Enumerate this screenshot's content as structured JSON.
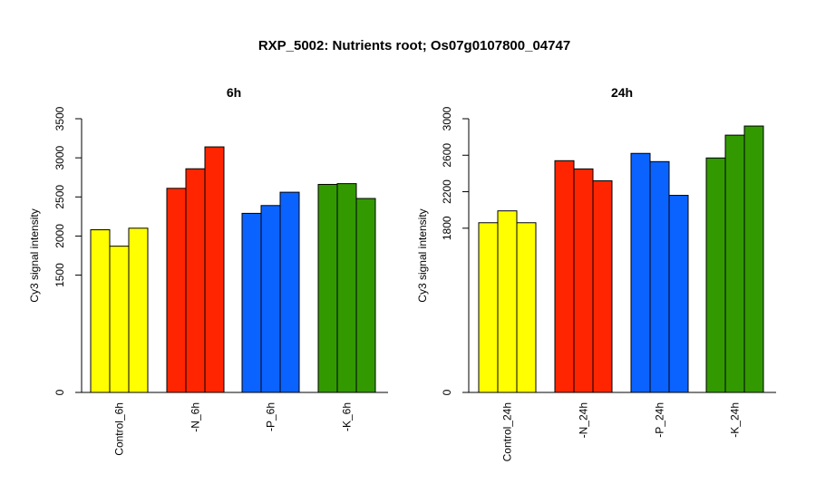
{
  "title": "RXP_5002: Nutrients root; Os07g0107800_04747",
  "colors": {
    "control": "#ffff00",
    "n": "#ff2500",
    "p": "#0b63ff",
    "k": "#339900",
    "outline": "#000000"
  },
  "chart_data": [
    {
      "type": "bar",
      "title": "6h",
      "ylabel": "Cy3 signal intensity",
      "categories": [
        "Control_6h",
        "-N_6h",
        "-P_6h",
        "-K_6h"
      ],
      "bars_per_category": 3,
      "values": [
        [
          2080,
          1870,
          2100
        ],
        [
          2610,
          2860,
          3140
        ],
        [
          2290,
          2390,
          2560
        ],
        [
          2660,
          2670,
          2480
        ]
      ],
      "ylim": [
        0,
        3500
      ],
      "ytick_values": [
        0,
        1500,
        2000,
        2500,
        3000,
        3500
      ],
      "ytick_labels": [
        "0",
        "1500",
        "2000",
        "2500",
        "3000",
        "3500"
      ],
      "grid": false
    },
    {
      "type": "bar",
      "title": "24h",
      "ylabel": "Cy3 signal intensity",
      "categories": [
        "Control_24h",
        "-N_24h",
        "-P_24h",
        "-K_24h"
      ],
      "bars_per_category": 3,
      "values": [
        [
          1860,
          1990,
          1860
        ],
        [
          2540,
          2450,
          2320
        ],
        [
          2620,
          2530,
          2160
        ],
        [
          2570,
          2820,
          2920
        ]
      ],
      "ylim": [
        0,
        3000
      ],
      "ytick_values": [
        0,
        1800,
        2200,
        2600,
        3000
      ],
      "ytick_labels": [
        "0",
        "1800",
        "2200",
        "2600",
        "3000"
      ],
      "grid": false
    }
  ]
}
